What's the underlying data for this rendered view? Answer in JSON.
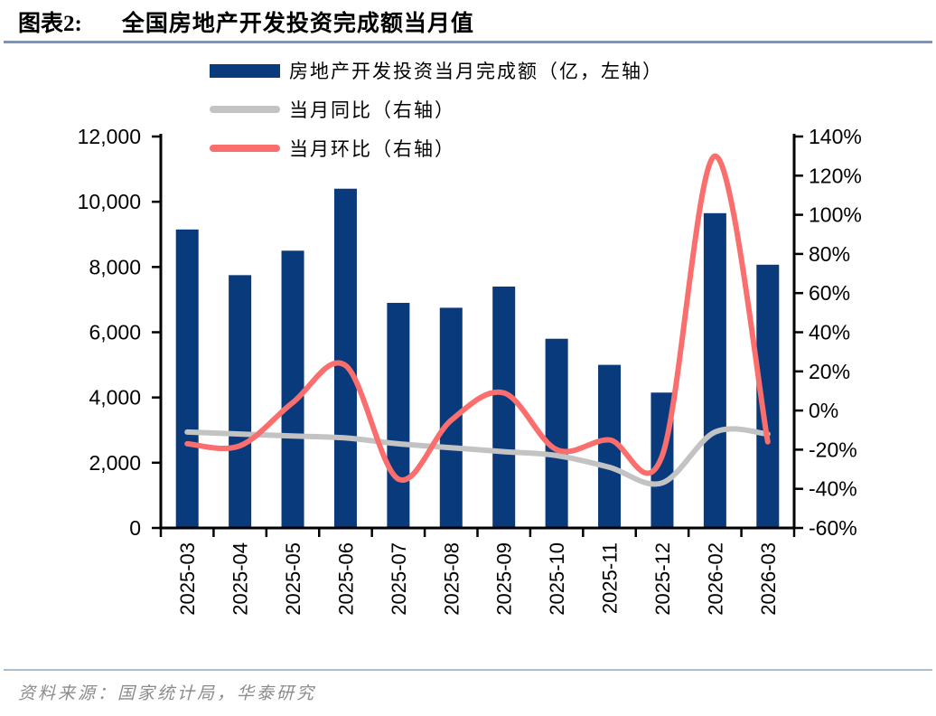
{
  "header": {
    "figure_label": "图表2:",
    "title": "全国房地产开发投资完成额当月值"
  },
  "legend": [
    {
      "label": "房地产开发投资当月完成额（亿，左轴）",
      "swatch": "bar",
      "color": "#093a7b"
    },
    {
      "label": "当月同比（右轴）",
      "swatch": "line",
      "color": "#c3c3c3"
    },
    {
      "label": "当月环比（右轴）",
      "swatch": "line",
      "color": "#fa6e6e"
    }
  ],
  "source": {
    "text": "资料来源：国家统计局，华泰研究"
  },
  "colors": {
    "bar": "#093a7b",
    "yoy_line": "#c3c3c3",
    "mom_line": "#fa6e6e",
    "axis": "#000000",
    "title_rule": "#7795c0",
    "source_rule": "#aabccf",
    "source_text": "#8b8b8b"
  },
  "chart_data": {
    "type": "bar",
    "title": "全国房地产开发投资完成额当月值",
    "categories": [
      "2025-03",
      "2025-04",
      "2025-05",
      "2025-06",
      "2025-07",
      "2025-08",
      "2025-09",
      "2025-10",
      "2025-11",
      "2025-12",
      "2026-02",
      "2026-03"
    ],
    "series": [
      {
        "name": "房地产开发投资当月完成额（亿，左轴）",
        "type": "bar",
        "axis": "left",
        "values": [
          9150,
          7750,
          8500,
          10400,
          6900,
          6750,
          7400,
          5800,
          5000,
          4150,
          9650,
          8070
        ]
      },
      {
        "name": "当月同比（右轴）",
        "type": "line",
        "axis": "right",
        "values": [
          -11,
          -12,
          -13,
          -14,
          -17,
          -19,
          -21,
          -23,
          -29,
          -37,
          -11,
          -12
        ]
      },
      {
        "name": "当月环比（右轴）",
        "type": "line",
        "axis": "right",
        "values": [
          -17,
          -18,
          4,
          23,
          -35,
          -5,
          9,
          -20,
          -15,
          -23,
          130,
          -16
        ]
      }
    ],
    "left_axis": {
      "min": 0,
      "max": 12000,
      "step": 2000,
      "tick_labels": [
        "0",
        "2,000",
        "4,000",
        "6,000",
        "8,000",
        "10,000",
        "12,000"
      ]
    },
    "right_axis": {
      "min": -60,
      "max": 140,
      "step": 20,
      "tick_labels": [
        "-60%",
        "-40%",
        "-20%",
        "0%",
        "20%",
        "40%",
        "60%",
        "80%",
        "100%",
        "120%",
        "140%"
      ]
    },
    "grid": false,
    "legend_position": "top-left-stacked",
    "x_label_rotation": -90
  }
}
